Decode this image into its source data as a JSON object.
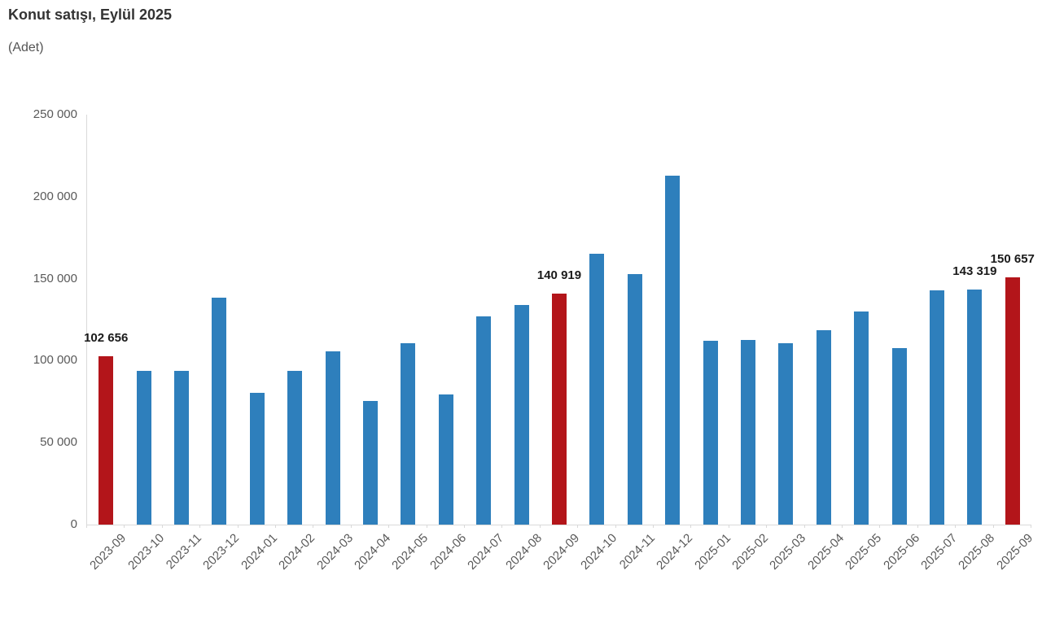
{
  "chart_data": {
    "type": "bar",
    "title": "Konut satışı, Eylül 2025",
    "subtitle": "(Adet)",
    "xlabel": "",
    "ylabel": "",
    "ylim": [
      0,
      250000
    ],
    "grid": false,
    "legend": false,
    "colors": {
      "bar_blue": "#2E7FBC",
      "bar_red_highlight": "#B3151A",
      "axis_line": "#D9D9D9",
      "axis_text": "#595959",
      "title_text": "#333333",
      "data_label_text": "#1A1A1A"
    },
    "yticks": [
      {
        "value": 250000,
        "label": "250 000"
      },
      {
        "value": 200000,
        "label": "200 000"
      },
      {
        "value": 150000,
        "label": "150 000"
      },
      {
        "value": 100000,
        "label": "100 000"
      },
      {
        "value": 50000,
        "label": "50 000"
      },
      {
        "value": 0,
        "label": "0"
      }
    ],
    "bars": [
      {
        "category": "2023-09",
        "value": 102656,
        "highlighted": true,
        "data_label": "102 656"
      },
      {
        "category": "2023-10",
        "value": 93761,
        "highlighted": false
      },
      {
        "category": "2023-11",
        "value": 93514,
        "highlighted": false
      },
      {
        "category": "2023-12",
        "value": 138577,
        "highlighted": false
      },
      {
        "category": "2024-01",
        "value": 80308,
        "highlighted": false
      },
      {
        "category": "2024-02",
        "value": 93902,
        "highlighted": false
      },
      {
        "category": "2024-03",
        "value": 105476,
        "highlighted": false
      },
      {
        "category": "2024-04",
        "value": 75569,
        "highlighted": false
      },
      {
        "category": "2024-05",
        "value": 110588,
        "highlighted": false
      },
      {
        "category": "2024-06",
        "value": 79313,
        "highlighted": false
      },
      {
        "category": "2024-07",
        "value": 127088,
        "highlighted": false
      },
      {
        "category": "2024-08",
        "value": 134155,
        "highlighted": false
      },
      {
        "category": "2024-09",
        "value": 140919,
        "highlighted": true,
        "data_label": "140 919"
      },
      {
        "category": "2024-10",
        "value": 165138,
        "highlighted": false
      },
      {
        "category": "2024-11",
        "value": 153014,
        "highlighted": false
      },
      {
        "category": "2024-12",
        "value": 212637,
        "highlighted": false
      },
      {
        "category": "2025-01",
        "value": 112173,
        "highlighted": false
      },
      {
        "category": "2025-02",
        "value": 112818,
        "highlighted": false
      },
      {
        "category": "2025-03",
        "value": 110795,
        "highlighted": false
      },
      {
        "category": "2025-04",
        "value": 118359,
        "highlighted": false
      },
      {
        "category": "2025-05",
        "value": 130025,
        "highlighted": false
      },
      {
        "category": "2025-06",
        "value": 107723,
        "highlighted": false
      },
      {
        "category": "2025-07",
        "value": 142858,
        "highlighted": false
      },
      {
        "category": "2025-08",
        "value": 143319,
        "highlighted": false,
        "data_label": "143 319"
      },
      {
        "category": "2025-09",
        "value": 150657,
        "highlighted": true,
        "data_label": "150 657"
      }
    ]
  }
}
